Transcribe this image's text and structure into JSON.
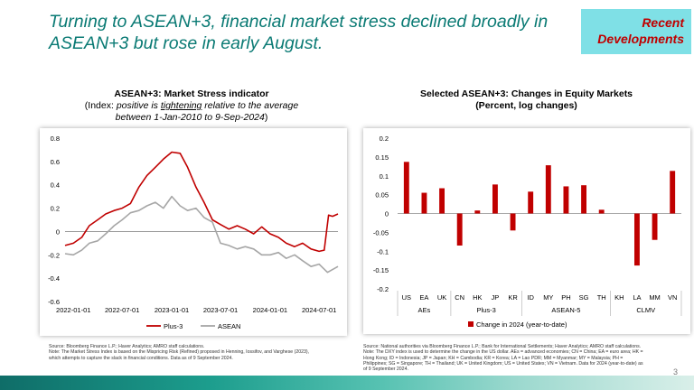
{
  "slide": {
    "title": "Turning to ASEAN+3, financial market stress declined broadly in ASEAN+3 but rose in early August.",
    "tag_line1": "Recent",
    "tag_line2": "Developments",
    "page_number": "3"
  },
  "left": {
    "heading_bold": "ASEAN+3: Market Stress indicator",
    "heading_pre": "(Index: ",
    "heading_italic1": "positive is ",
    "heading_underlined": "tightening",
    "heading_italic2": " relative to the average",
    "heading_line3": "between 1-Jan-2010 to 9-Sep-2024",
    "heading_close": ")",
    "footnote_line1": "Source: Bloomberg Finance L.P.; Haver Analytics; AMRO staff calculations.",
    "footnote_line2": "Note: The Market Stress Index is based on the Mispricing Risk (Refined) proposed in Henning, Iossifov, and Varghese (2023),",
    "footnote_line3": "which attempts to capture the slack in financial conditions. Data as of 9 September 2024."
  },
  "right": {
    "heading_line1": "Selected ASEAN+3: Changes in Equity Markets",
    "heading_line2": "(Percent, log changes)",
    "footnote_line1": "Source: National authorities via Bloomberg Finance L.P.; Bank for International Settlements; Haver Analytics; AMRO staff calculations.",
    "footnote_line2": "Note: The DXY index is used to determine the change in the US dollar. AEs = advanced economies; CN = China; EA = euro area; HK =",
    "footnote_line3": "Hong Kong; ID = Indonesia; JP = Japan; KH = Cambodia; KR = Korea; LA = Lao PDR; MM = Myanmar; MY = Malaysia; PH =",
    "footnote_line4": "Philippines; SG = Singapore; TH = Thailand; UK = United Kingdom; US = United States; VN = Vietnam. Data for 2024 (year-to-date) as",
    "footnote_line5": "of 9 September 2024."
  },
  "chart_data": [
    {
      "type": "line",
      "x_ticks": [
        "2022-01-01",
        "2022-07-01",
        "2023-01-01",
        "2023-07-01",
        "2024-01-01",
        "2024-07-01"
      ],
      "x_range": [
        "2021-12-01",
        "2024-09-09"
      ],
      "ylim": [
        -0.6,
        0.8
      ],
      "y_ticks": [
        -0.6,
        -0.4,
        -0.2,
        0,
        0.2,
        0.4,
        0.6,
        0.8
      ],
      "grid": false,
      "legend_position": "bottom",
      "series": [
        {
          "name": "Plus-3",
          "color": "#c00000",
          "x": [
            "2021-12-01",
            "2022-01-01",
            "2022-02-01",
            "2022-03-01",
            "2022-04-01",
            "2022-05-01",
            "2022-06-01",
            "2022-07-01",
            "2022-08-01",
            "2022-09-01",
            "2022-10-01",
            "2022-11-01",
            "2022-12-01",
            "2023-01-01",
            "2023-02-01",
            "2023-03-01",
            "2023-04-01",
            "2023-05-01",
            "2023-06-01",
            "2023-07-01",
            "2023-08-01",
            "2023-09-01",
            "2023-10-01",
            "2023-11-01",
            "2023-12-01",
            "2024-01-01",
            "2024-02-01",
            "2024-03-01",
            "2024-04-01",
            "2024-05-01",
            "2024-06-01",
            "2024-07-01",
            "2024-07-20",
            "2024-08-05",
            "2024-08-20",
            "2024-09-09"
          ],
          "values": [
            -0.12,
            -0.1,
            -0.05,
            0.05,
            0.1,
            0.15,
            0.18,
            0.2,
            0.24,
            0.38,
            0.48,
            0.55,
            0.62,
            0.68,
            0.67,
            0.55,
            0.38,
            0.25,
            0.1,
            0.06,
            0.02,
            0.05,
            0.02,
            -0.02,
            0.04,
            -0.02,
            -0.05,
            -0.1,
            -0.13,
            -0.1,
            -0.15,
            -0.17,
            -0.16,
            0.14,
            0.13,
            0.15
          ]
        },
        {
          "name": "ASEAN",
          "color": "#a6a6a6",
          "x": [
            "2021-12-01",
            "2022-01-01",
            "2022-02-01",
            "2022-03-01",
            "2022-04-01",
            "2022-05-01",
            "2022-06-01",
            "2022-07-01",
            "2022-08-01",
            "2022-09-01",
            "2022-10-01",
            "2022-11-01",
            "2022-12-01",
            "2023-01-01",
            "2023-02-01",
            "2023-03-01",
            "2023-04-01",
            "2023-05-01",
            "2023-06-01",
            "2023-07-01",
            "2023-08-01",
            "2023-09-01",
            "2023-10-01",
            "2023-11-01",
            "2023-12-01",
            "2024-01-01",
            "2024-02-01",
            "2024-03-01",
            "2024-04-01",
            "2024-05-01",
            "2024-06-01",
            "2024-07-01",
            "2024-08-01",
            "2024-09-09"
          ],
          "values": [
            -0.19,
            -0.2,
            -0.16,
            -0.1,
            -0.08,
            -0.02,
            0.05,
            0.1,
            0.16,
            0.18,
            0.22,
            0.25,
            0.2,
            0.3,
            0.22,
            0.18,
            0.2,
            0.12,
            0.08,
            -0.1,
            -0.12,
            -0.15,
            -0.13,
            -0.15,
            -0.2,
            -0.2,
            -0.18,
            -0.23,
            -0.2,
            -0.25,
            -0.3,
            -0.28,
            -0.35,
            -0.3
          ]
        }
      ]
    },
    {
      "type": "bar",
      "categories": [
        "US",
        "EA",
        "UK",
        "CN",
        "HK",
        "JP",
        "KR",
        "ID",
        "MY",
        "PH",
        "SG",
        "TH",
        "KH",
        "LA",
        "MM",
        "VN"
      ],
      "groups": [
        {
          "label": "AEs",
          "categories": [
            "US",
            "EA",
            "UK"
          ]
        },
        {
          "label": "Plus-3",
          "categories": [
            "CN",
            "HK",
            "JP",
            "KR"
          ]
        },
        {
          "label": "ASEAN-5",
          "categories": [
            "ID",
            "MY",
            "PH",
            "SG",
            "TH"
          ]
        },
        {
          "label": "CLMV",
          "categories": [
            "KH",
            "LA",
            "MM",
            "VN"
          ]
        }
      ],
      "series": [
        {
          "name": "Change in 2024 (year-to-date)",
          "color": "#c00000",
          "values": [
            0.137,
            0.055,
            0.067,
            -0.085,
            0.008,
            0.077,
            -0.045,
            0.058,
            0.128,
            0.072,
            0.075,
            0.01,
            0,
            -0.138,
            -0.07,
            0.113
          ]
        }
      ],
      "ylim": [
        -0.2,
        0.2
      ],
      "y_ticks": [
        -0.2,
        -0.15,
        -0.1,
        -0.05,
        0,
        0.05,
        0.1,
        0.15,
        0.2
      ],
      "legend_position": "bottom"
    }
  ]
}
